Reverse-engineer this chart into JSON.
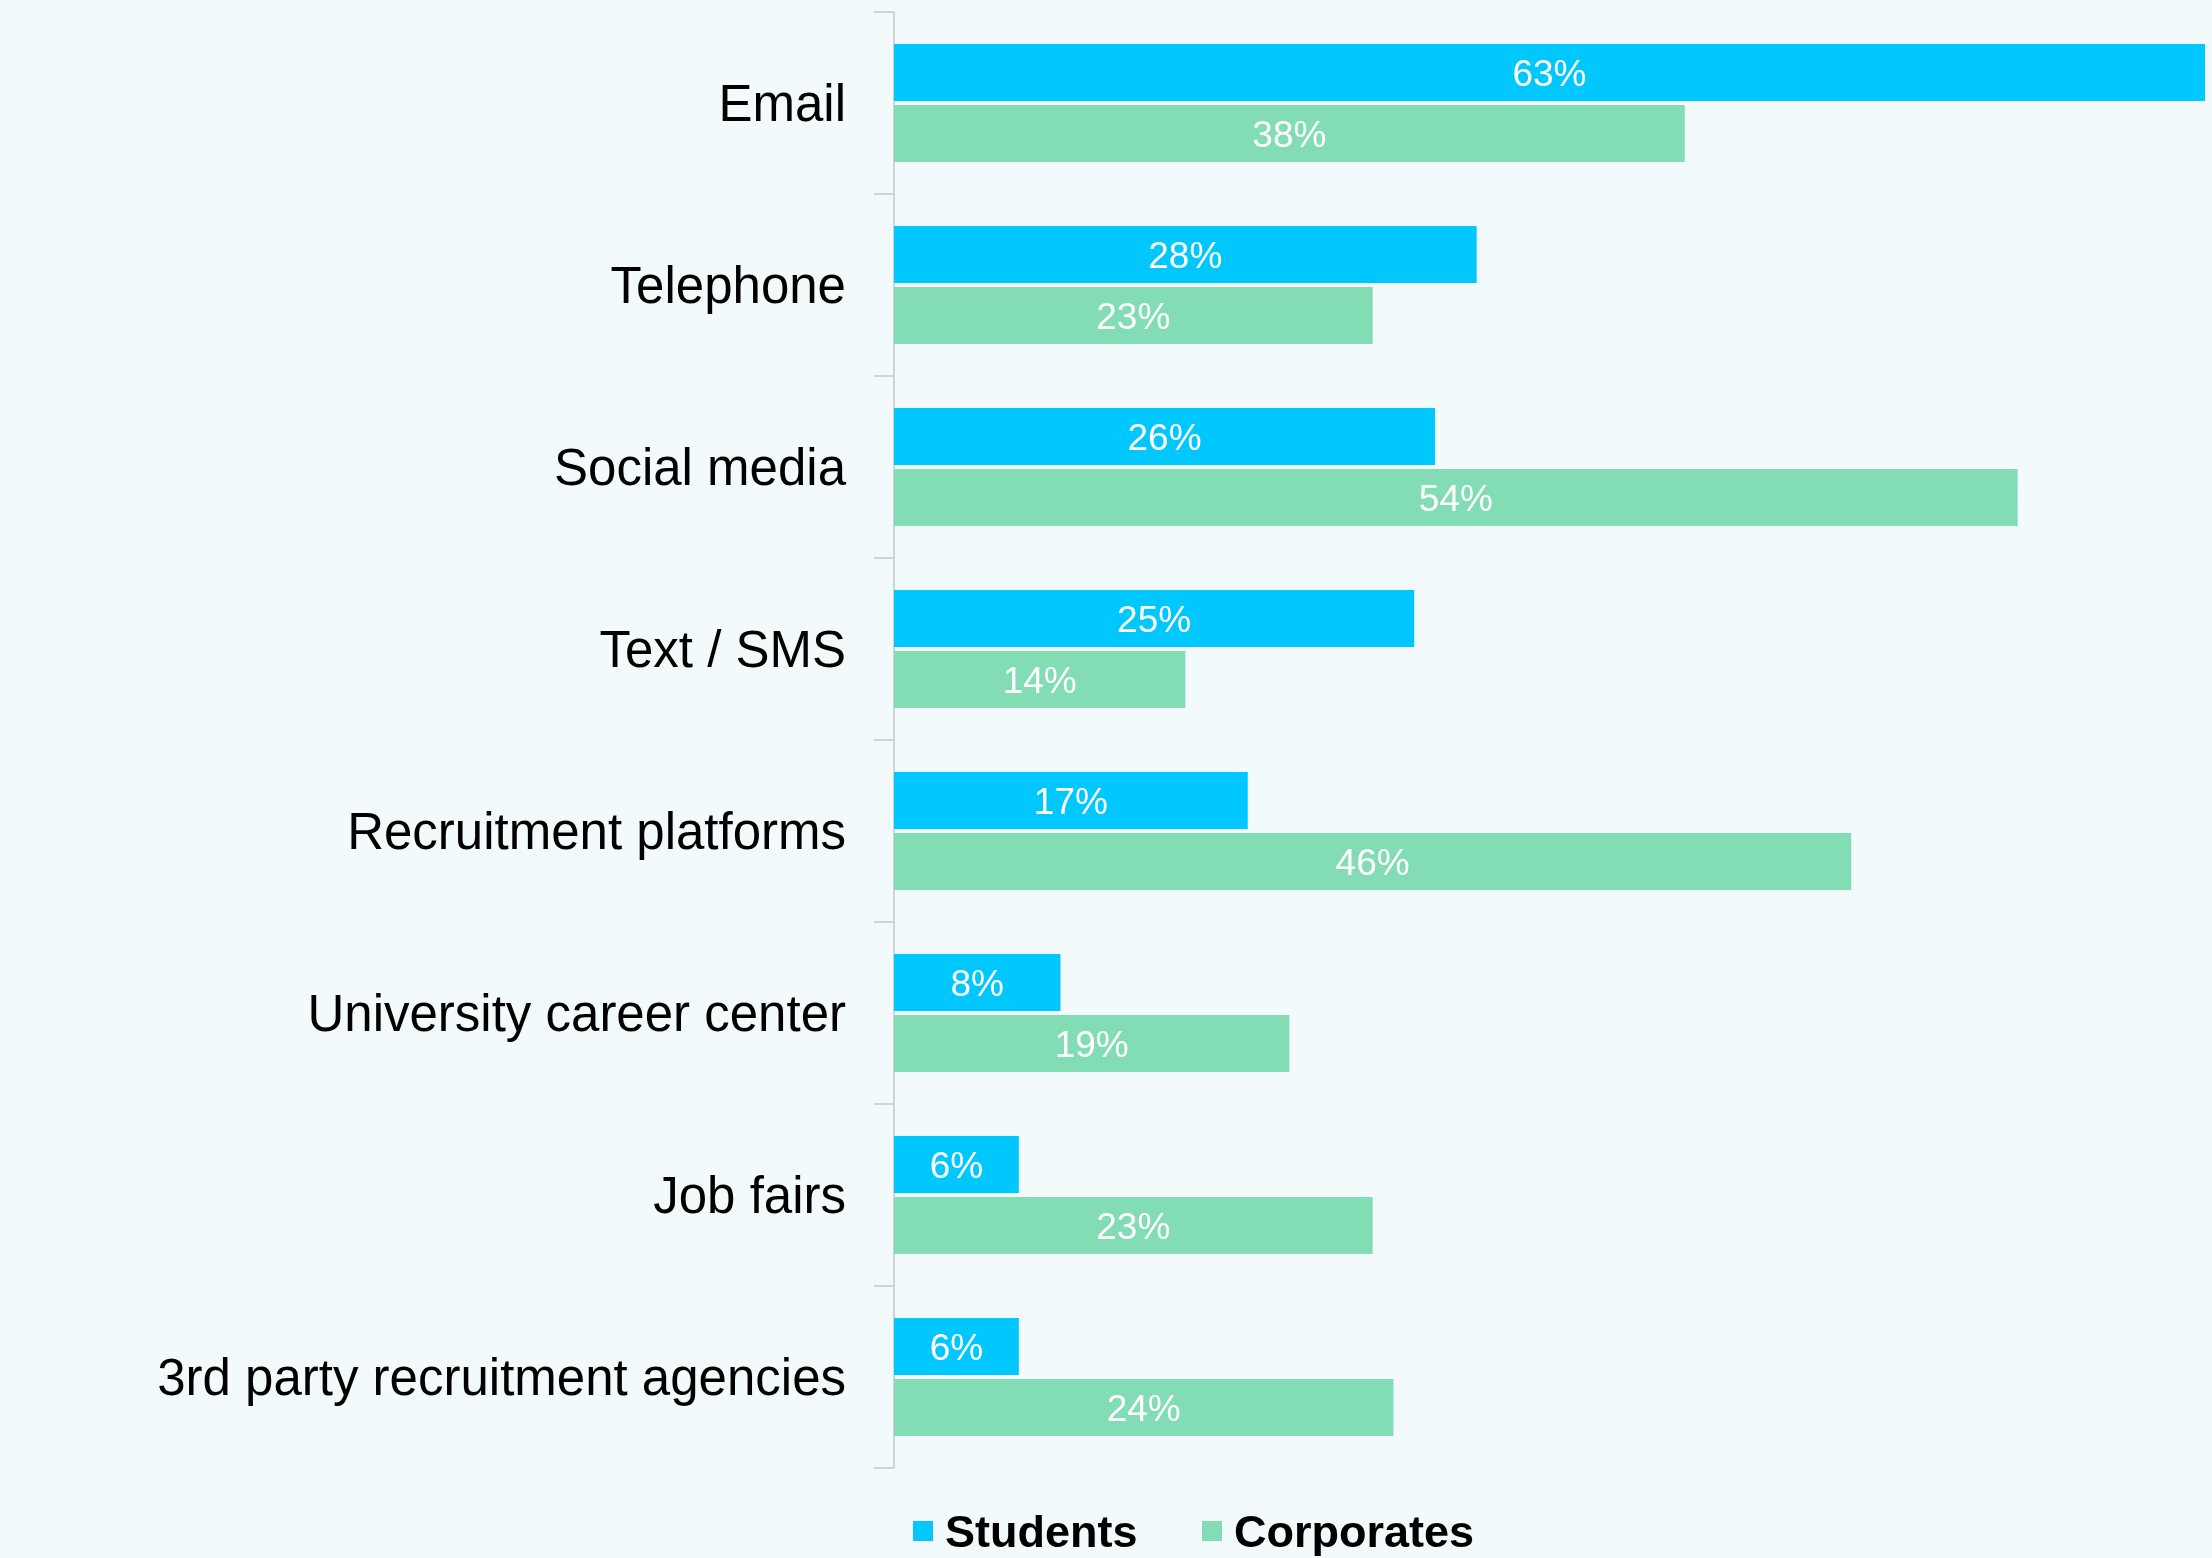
{
  "chart_data": {
    "type": "bar",
    "orientation": "horizontal",
    "categories": [
      "Email",
      "Telephone",
      "Social media",
      "Text / SMS",
      "Recruitment platforms",
      "University career center",
      "Job fairs",
      "3rd party recruitment agencies"
    ],
    "series": [
      {
        "name": "Students",
        "color": "#00c8ff",
        "values": [
          63,
          28,
          26,
          25,
          17,
          8,
          6,
          6
        ],
        "value_labels": [
          "63%",
          "28%",
          "26%",
          "25%",
          "17%",
          "8%",
          "6%",
          "6%"
        ]
      },
      {
        "name": "Corporates",
        "color": "#82dcb4",
        "values": [
          38,
          23,
          54,
          14,
          46,
          19,
          23,
          24
        ],
        "value_labels": [
          "38%",
          "23%",
          "54%",
          "14%",
          "46%",
          "19%",
          "23%",
          "24%"
        ]
      }
    ],
    "legend": "bottom"
  }
}
